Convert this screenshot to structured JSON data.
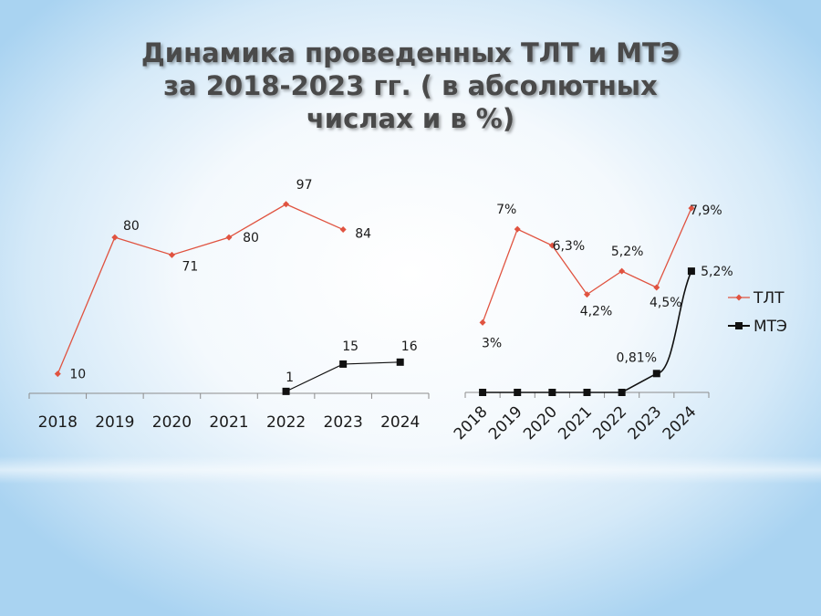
{
  "title": "Динамика проведенных ТЛТ и МТЭ за 2018-2023 гг. ( в абсолютных числах и в %)",
  "colors": {
    "tlt": "#e05340",
    "mte": "#111111",
    "axis": "#8c8c8c"
  },
  "chart_data": [
    {
      "type": "line",
      "categories": [
        "2018",
        "2019",
        "2020",
        "2021",
        "2022",
        "2023",
        "2024"
      ],
      "ylim": [
        0,
        110
      ],
      "grid": false,
      "legend": "none",
      "series": [
        {
          "values": [
            10,
            80,
            71,
            80,
            97,
            84,
            null
          ],
          "labels": [
            "10",
            "80",
            "71",
            "80",
            "97",
            "84",
            ""
          ]
        },
        {
          "values": [
            null,
            null,
            null,
            null,
            1,
            15,
            16
          ],
          "labels": [
            "",
            "",
            "",
            "",
            "1",
            "15",
            "16"
          ]
        }
      ]
    },
    {
      "type": "line",
      "categories": [
        "2018",
        "2019",
        "2020",
        "2021",
        "2022",
        "2023",
        "2024"
      ],
      "ylim": [
        0,
        9
      ],
      "grid": false,
      "legend": "right",
      "series": [
        {
          "name": "ТЛТ",
          "values": [
            3,
            7,
            6.3,
            4.2,
            5.2,
            4.5,
            7.9
          ],
          "labels": [
            "3%",
            "7%",
            "6,3%",
            "4,2%",
            "5,2%",
            "4,5%",
            "7,9%"
          ]
        },
        {
          "name": "МТЭ",
          "values": [
            0,
            0,
            0,
            0,
            0,
            0.81,
            5.2
          ],
          "labels": [
            "",
            "",
            "",
            "",
            "",
            "0,81%",
            "5,2%"
          ]
        }
      ]
    }
  ]
}
